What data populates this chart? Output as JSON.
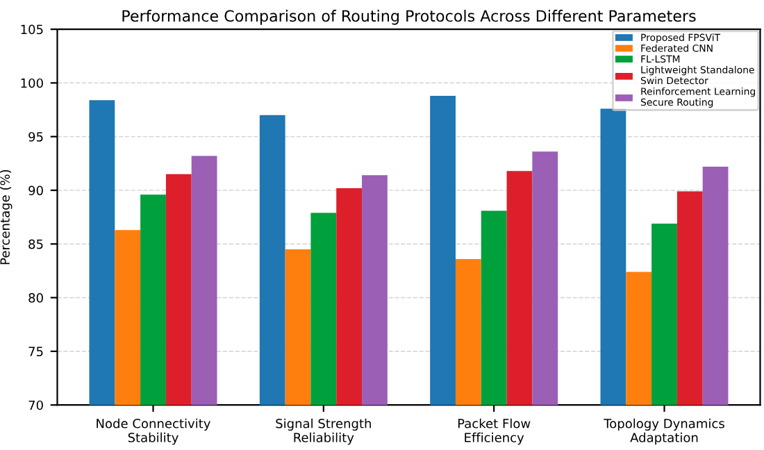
{
  "chart_data": {
    "type": "bar",
    "title": "Performance Comparison of Routing Protocols Across Different Parameters",
    "ylabel": "Percentage (%)",
    "categories": [
      "Node Connectivity\nStability",
      "Signal Strength\nReliability",
      "Packet Flow\nEfficiency",
      "Topology Dynamics\nAdaptation"
    ],
    "series": [
      {
        "name": "Proposed FPSViT",
        "color": "#1f77b4",
        "values": [
          98.4,
          97.0,
          98.8,
          97.6
        ]
      },
      {
        "name": "Federated CNN",
        "color": "#ff7f0e",
        "values": [
          86.3,
          84.5,
          83.6,
          82.4
        ]
      },
      {
        "name": "FL-LSTM",
        "color": "#00a03c",
        "values": [
          89.6,
          87.9,
          88.1,
          86.9
        ]
      },
      {
        "name": "Lightweight Standalone\nSwin Detector",
        "color": "#dd1f2b",
        "values": [
          91.5,
          90.2,
          91.8,
          89.9
        ]
      },
      {
        "name": "Reinforcement Learning\nSecure Routing",
        "color": "#9b5fb6",
        "values": [
          93.2,
          91.4,
          93.6,
          92.2
        ]
      }
    ],
    "ylim": [
      70,
      105
    ],
    "yticks": [
      70,
      75,
      80,
      85,
      90,
      95,
      100,
      105
    ],
    "grid": "y",
    "legend": "top right"
  }
}
